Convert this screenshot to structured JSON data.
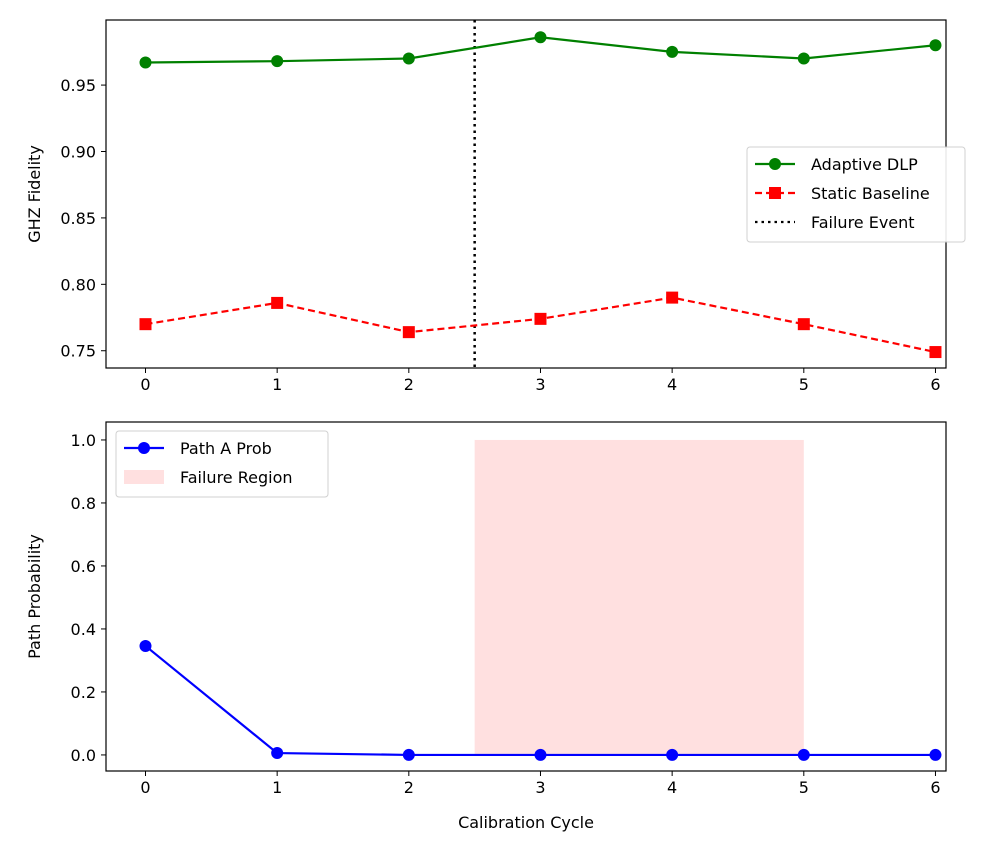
{
  "chart_data": [
    {
      "type": "line",
      "title": "",
      "xlabel": "",
      "ylabel": "GHZ Fidelity",
      "x": [
        0,
        1,
        2,
        3,
        4,
        5,
        6
      ],
      "xlim": [
        -0.3,
        6.08
      ],
      "ylim": [
        0.737,
        0.999
      ],
      "xticks": [
        "0",
        "1",
        "2",
        "3",
        "4",
        "5",
        "6"
      ],
      "yticks": [
        0.75,
        0.8,
        0.85,
        0.9,
        0.95
      ],
      "ytick_labels": [
        "0.75",
        "0.80",
        "0.85",
        "0.90",
        "0.95"
      ],
      "series": [
        {
          "name": "Adaptive DLP",
          "color": "#008000",
          "style": "solid",
          "marker": "circle",
          "values": [
            0.967,
            0.968,
            0.97,
            0.986,
            0.975,
            0.97,
            0.98
          ]
        },
        {
          "name": "Static Baseline",
          "color": "#ff0000",
          "style": "dashed",
          "marker": "square",
          "values": [
            0.77,
            0.786,
            0.764,
            0.774,
            0.79,
            0.77,
            0.749
          ]
        }
      ],
      "vline": {
        "name": "Failure Event",
        "x": 2.5,
        "color": "#000000",
        "style": "dotted"
      },
      "legend": [
        "Adaptive DLP",
        "Static Baseline",
        "Failure Event"
      ],
      "legend_position": "center-right"
    },
    {
      "type": "line",
      "xlabel": "Calibration Cycle",
      "ylabel": "Path Probability",
      "x": [
        0,
        1,
        2,
        3,
        4,
        5,
        6
      ],
      "xlim": [
        -0.3,
        6.08
      ],
      "ylim": [
        -0.051,
        1.057
      ],
      "xticks": [
        "0",
        "1",
        "2",
        "3",
        "4",
        "5",
        "6"
      ],
      "yticks": [
        0.0,
        0.2,
        0.4,
        0.6,
        0.8,
        1.0
      ],
      "ytick_labels": [
        "0.0",
        "0.2",
        "0.4",
        "0.6",
        "0.8",
        "1.0"
      ],
      "series": [
        {
          "name": "Path A Prob",
          "color": "#0000ff",
          "style": "solid",
          "marker": "circle",
          "values": [
            0.346,
            0.006,
            0.0,
            0.0,
            0.0,
            0.0,
            0.0
          ]
        }
      ],
      "span": {
        "name": "Failure Region",
        "x0": 2.5,
        "x1": 5.0,
        "y0": 0,
        "y1": 1.0,
        "color": "#ffe0e0"
      },
      "legend": [
        "Path A Prob",
        "Failure Region"
      ],
      "legend_position": "upper-left"
    }
  ]
}
